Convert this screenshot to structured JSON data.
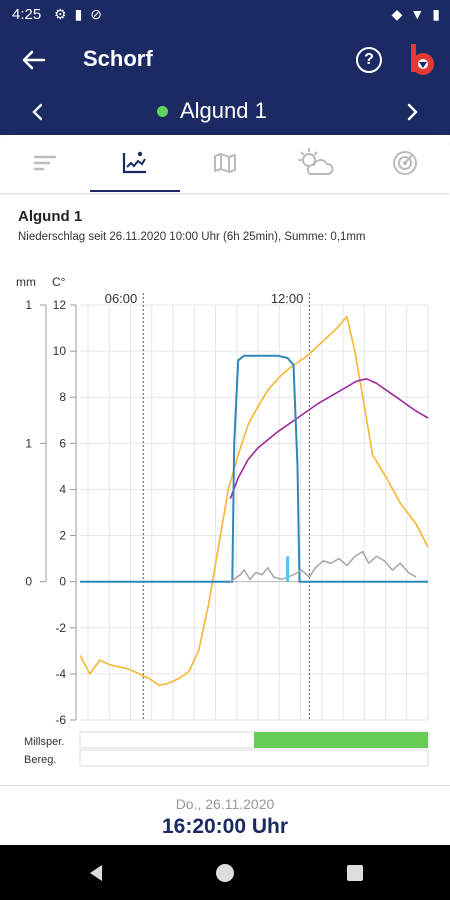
{
  "status_bar": {
    "time": "4:25"
  },
  "app_bar": {
    "title": "Schorf"
  },
  "station": {
    "name": "Algund 1",
    "status_color": "#5dd45d"
  },
  "tabs": [
    {
      "name": "list-tab",
      "active": false
    },
    {
      "name": "chart-tab",
      "active": true
    },
    {
      "name": "map-tab",
      "active": false
    },
    {
      "name": "weather-tab",
      "active": false
    },
    {
      "name": "radar-tab",
      "active": false
    }
  ],
  "chart_header": {
    "title": "Algund 1",
    "subtitle": "Niederschlag seit 26.11.2020 10:00 Uhr (6h 25min), Summe: 0,1mm"
  },
  "chart_data": {
    "type": "line",
    "left_axis": {
      "label": "mm",
      "ticks": [
        "1",
        "1",
        "0"
      ]
    },
    "temp_axis": {
      "label": "C°",
      "ticks": [
        "12",
        "10",
        "8",
        "6",
        "4",
        "2",
        "0",
        "-2",
        "-4",
        "-6"
      ],
      "ylim": [
        -6,
        12
      ]
    },
    "x_markers": [
      "06:00",
      "12:00"
    ],
    "series": [
      {
        "color": "#f5b731",
        "kind": "temperature",
        "values": [
          [
            0,
            -3.2
          ],
          [
            0.5,
            -4.0
          ],
          [
            1,
            -3.4
          ],
          [
            1.5,
            -3.6
          ],
          [
            2,
            -3.7
          ],
          [
            2.5,
            -3.8
          ],
          [
            3,
            -4.0
          ],
          [
            3.5,
            -4.2
          ],
          [
            4,
            -4.5
          ],
          [
            4.5,
            -4.4
          ],
          [
            5,
            -4.2
          ],
          [
            5.5,
            -3.9
          ],
          [
            6,
            -3.0
          ],
          [
            6.5,
            -1.0
          ],
          [
            7,
            1.5
          ],
          [
            7.5,
            4.0
          ],
          [
            8,
            5.5
          ],
          [
            8.5,
            6.8
          ],
          [
            9,
            7.6
          ],
          [
            9.5,
            8.3
          ],
          [
            10,
            8.8
          ],
          [
            10.5,
            9.2
          ],
          [
            11,
            9.5
          ],
          [
            11.5,
            9.8
          ],
          [
            12,
            10.2
          ],
          [
            12.5,
            10.6
          ],
          [
            13,
            11.0
          ],
          [
            13.5,
            11.5
          ],
          [
            13.9,
            10.0
          ],
          [
            14.3,
            8.0
          ],
          [
            14.8,
            5.5
          ],
          [
            15.5,
            4.5
          ],
          [
            16.2,
            3.4
          ],
          [
            17,
            2.5
          ],
          [
            17.6,
            1.5
          ]
        ]
      },
      {
        "color": "#9c2a9c",
        "kind": "temperature",
        "values": [
          [
            7.6,
            3.6
          ],
          [
            8,
            4.5
          ],
          [
            8.5,
            5.3
          ],
          [
            9,
            5.8
          ],
          [
            10,
            6.5
          ],
          [
            11,
            7.1
          ],
          [
            12,
            7.7
          ],
          [
            13,
            8.2
          ],
          [
            14,
            8.7
          ],
          [
            14.5,
            8.8
          ],
          [
            15,
            8.6
          ],
          [
            16,
            8.0
          ],
          [
            17,
            7.4
          ],
          [
            17.6,
            7.1
          ]
        ]
      },
      {
        "color": "#2f87b8",
        "kind": "leaf-wetness",
        "values": [
          [
            0,
            0
          ],
          [
            7.5,
            0
          ],
          [
            7.7,
            0
          ],
          [
            7.8,
            6
          ],
          [
            8,
            9.6
          ],
          [
            8.3,
            9.8
          ],
          [
            9,
            9.8
          ],
          [
            10,
            9.8
          ],
          [
            10.5,
            9.7
          ],
          [
            10.8,
            9.4
          ],
          [
            11,
            5
          ],
          [
            11.1,
            0
          ],
          [
            11.3,
            0
          ],
          [
            17.6,
            0
          ]
        ]
      },
      {
        "color": "#aaaaaa",
        "kind": "humidity",
        "values": [
          [
            7.6,
            0
          ],
          [
            8.1,
            0.3
          ],
          [
            8.3,
            0.5
          ],
          [
            8.6,
            0.1
          ],
          [
            8.9,
            0.4
          ],
          [
            9.2,
            0.3
          ],
          [
            9.5,
            0.6
          ],
          [
            9.8,
            0.2
          ],
          [
            10.2,
            0.1
          ],
          [
            10.8,
            0.3
          ],
          [
            11.2,
            0.5
          ],
          [
            11.6,
            0.2
          ],
          [
            11.9,
            0.6
          ],
          [
            12.3,
            0.9
          ],
          [
            12.7,
            0.8
          ],
          [
            13.1,
            1.0
          ],
          [
            13.5,
            0.7
          ],
          [
            13.9,
            1.1
          ],
          [
            14.3,
            1.3
          ],
          [
            14.6,
            0.8
          ],
          [
            15.0,
            1.1
          ],
          [
            15.4,
            0.9
          ],
          [
            15.8,
            0.5
          ],
          [
            16.2,
            0.8
          ],
          [
            16.6,
            0.4
          ],
          [
            17.0,
            0.2
          ]
        ]
      }
    ],
    "rain_bar": {
      "color": "#4fc3f7",
      "value": 1.1
    },
    "grid": true
  },
  "rows": [
    {
      "label": "Millsper.",
      "fill_start": 0.5,
      "fill_end": 1.0,
      "fill_color": "#66cc55"
    },
    {
      "label": "Bereg.",
      "fill_start": 0,
      "fill_end": 0,
      "fill_color": "#66cc55"
    }
  ],
  "bottom": {
    "date": "Do., 26.11.2020",
    "time": "16:20:00 Uhr"
  }
}
